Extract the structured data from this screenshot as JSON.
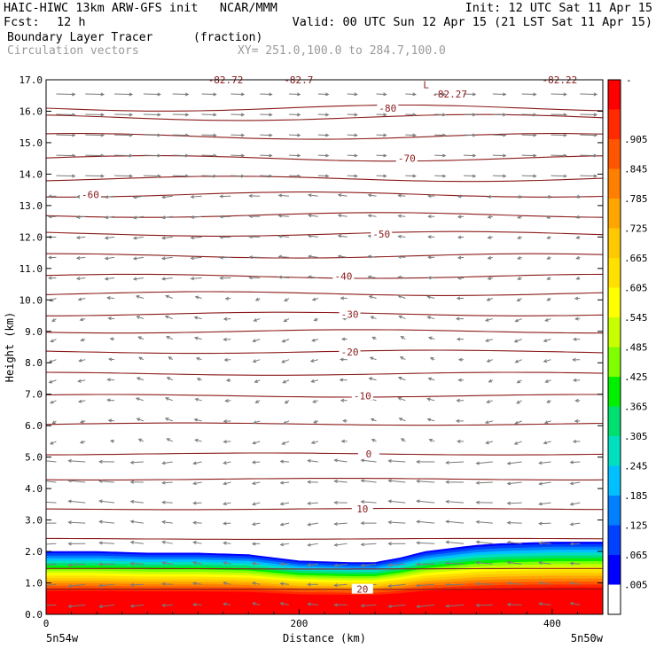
{
  "header": {
    "title_left": "HAIC-HIWC 13km ARW-GFS init   NCAR/MMM",
    "init": "Init: 12 UTC Sat 11 Apr 15",
    "fcst_label": "Fcst:",
    "fcst_value": "12 h",
    "valid": "Valid: 00 UTC Sun 12 Apr 15 (21 LST Sat 11 Apr 15)",
    "field_name": "Boundary Layer Tracer",
    "field_units": "(fraction)",
    "vector_name": "Circulation vectors",
    "xsec_path": "XY= 251.0,100.0 to 284.7,100.0"
  },
  "chart_data": {
    "type": "heatmap",
    "xlabel": "Distance (km)",
    "ylabel": "Height (km)",
    "xlim": [
      0,
      440
    ],
    "ylim": [
      0,
      17
    ],
    "x_ticks": [
      0,
      200,
      400
    ],
    "y_ticks": [
      "0.0",
      "1.0",
      "2.0",
      "3.0",
      "4.0",
      "5.0",
      "6.0",
      "7.0",
      "8.0",
      "9.0",
      "10.0",
      "11.0",
      "12.0",
      "13.0",
      "14.0",
      "15.0",
      "16.0",
      "17.0"
    ],
    "endpoint_left": "5n54w",
    "endpoint_right": "5n50w",
    "tracer_top_km": {
      "x": [
        0,
        40,
        80,
        120,
        160,
        200,
        240,
        260,
        280,
        300,
        320,
        340,
        360,
        400,
        440
      ],
      "top": [
        2.0,
        2.0,
        1.95,
        1.95,
        1.9,
        1.7,
        1.65,
        1.65,
        1.8,
        2.0,
        2.1,
        2.2,
        2.25,
        2.3,
        2.3
      ]
    },
    "colorbar": {
      "labels": [
        ".905",
        ".845",
        ".785",
        ".725",
        ".665",
        ".605",
        ".545",
        ".485",
        ".425",
        ".365",
        ".305",
        ".245",
        ".185",
        ".125",
        ".065",
        ".005"
      ],
      "top_label": "-",
      "colors": [
        "#ff0000",
        "#ff2a00",
        "#ff5500",
        "#ff7f00",
        "#ffa500",
        "#ffc800",
        "#ffe000",
        "#ffff00",
        "#c8ff00",
        "#80ff00",
        "#00f000",
        "#00e070",
        "#00e0c0",
        "#00c0ff",
        "#0080ff",
        "#0040ff",
        "#0000ff",
        "#ffffff"
      ]
    },
    "isotherms": {
      "levels_km": [
        0.8,
        1.45,
        2.4,
        3.35,
        4.3,
        5.1,
        6.05,
        6.95,
        7.65,
        8.35,
        9.0,
        9.55,
        10.2,
        10.75,
        11.4,
        12.1,
        12.7,
        13.35,
        13.85,
        14.5,
        15.2,
        15.8,
        16.1
      ],
      "labels": [
        {
          "text": "20",
          "x": 250,
          "km": 0.8
        },
        {
          "text": "10",
          "x": 250,
          "km": 3.35
        },
        {
          "text": "0",
          "x": 255,
          "km": 5.1
        },
        {
          "text": "-10",
          "x": 250,
          "km": 6.95
        },
        {
          "text": "-20",
          "x": 240,
          "km": 8.35
        },
        {
          "text": "-30",
          "x": 240,
          "km": 9.55
        },
        {
          "text": "-40",
          "x": 235,
          "km": 10.75
        },
        {
          "text": "-50",
          "x": 265,
          "km": 12.1
        },
        {
          "text": "-60",
          "x": 35,
          "km": 13.35
        },
        {
          "text": "-70",
          "x": 285,
          "km": 14.5
        },
        {
          "text": "-80",
          "x": 270,
          "km": 16.1
        }
      ]
    },
    "annotations": [
      {
        "text": "L",
        "x": 298,
        "km": 16.85
      },
      {
        "text": "-82.27",
        "x": 305,
        "km": 16.55
      },
      {
        "text": "-82.72",
        "x": 128,
        "km": 17.0
      },
      {
        "text": "-82.7",
        "x": 188,
        "km": 17.0
      },
      {
        "text": "-82.22",
        "x": 392,
        "km": 17.0
      }
    ]
  }
}
